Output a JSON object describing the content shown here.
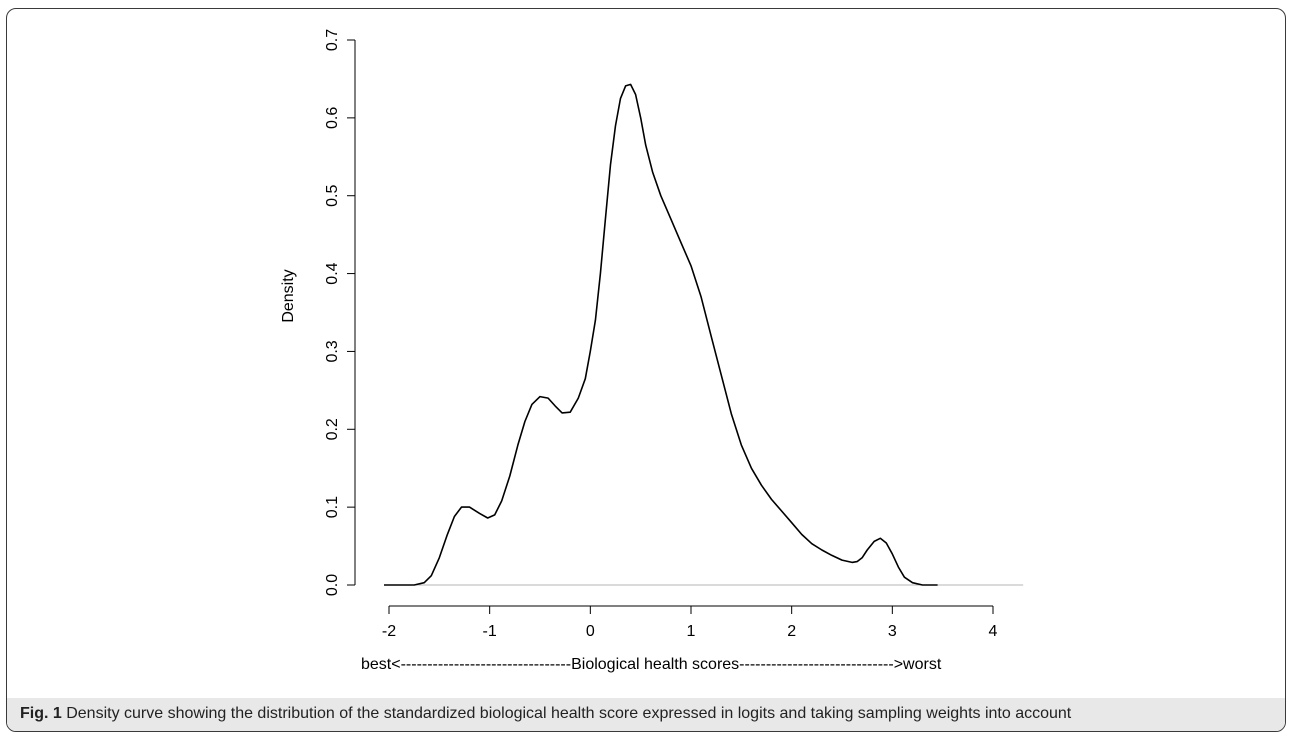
{
  "chart_data": {
    "type": "line",
    "xlabel": "best<--------------------------------Biological health scores----------------------------->worst",
    "ylabel": "Density",
    "xlim": [
      -2,
      4
    ],
    "ylim": [
      0,
      0.7
    ],
    "x_ticks": [
      -2,
      -1,
      0,
      1,
      2,
      3,
      4
    ],
    "x_tick_labels": [
      "-2",
      "-1",
      "0",
      "1",
      "2",
      "3",
      "4"
    ],
    "y_ticks": [
      0,
      0.1,
      0.2,
      0.3,
      0.4,
      0.5,
      0.6,
      0.7
    ],
    "y_tick_labels": [
      "0.0",
      "0.1",
      "0.2",
      "0.3",
      "0.4",
      "0.5",
      "0.6",
      "0.7"
    ],
    "baseline_x": [
      -2.05,
      4.3
    ],
    "series": [
      {
        "points": [
          [
            -2.05,
            0.0
          ],
          [
            -1.9,
            0.0
          ],
          [
            -1.75,
            0.0
          ],
          [
            -1.65,
            0.003
          ],
          [
            -1.58,
            0.012
          ],
          [
            -1.5,
            0.035
          ],
          [
            -1.42,
            0.065
          ],
          [
            -1.35,
            0.088
          ],
          [
            -1.28,
            0.1
          ],
          [
            -1.2,
            0.1
          ],
          [
            -1.1,
            0.092
          ],
          [
            -1.02,
            0.086
          ],
          [
            -0.95,
            0.09
          ],
          [
            -0.88,
            0.108
          ],
          [
            -0.8,
            0.14
          ],
          [
            -0.72,
            0.18
          ],
          [
            -0.65,
            0.21
          ],
          [
            -0.58,
            0.232
          ],
          [
            -0.5,
            0.242
          ],
          [
            -0.42,
            0.24
          ],
          [
            -0.35,
            0.23
          ],
          [
            -0.28,
            0.221
          ],
          [
            -0.2,
            0.222
          ],
          [
            -0.12,
            0.24
          ],
          [
            -0.05,
            0.265
          ],
          [
            0.0,
            0.3
          ],
          [
            0.05,
            0.34
          ],
          [
            0.1,
            0.4
          ],
          [
            0.15,
            0.47
          ],
          [
            0.2,
            0.54
          ],
          [
            0.25,
            0.59
          ],
          [
            0.3,
            0.625
          ],
          [
            0.35,
            0.641
          ],
          [
            0.4,
            0.643
          ],
          [
            0.45,
            0.63
          ],
          [
            0.5,
            0.6
          ],
          [
            0.55,
            0.565
          ],
          [
            0.62,
            0.53
          ],
          [
            0.7,
            0.5
          ],
          [
            0.8,
            0.47
          ],
          [
            0.9,
            0.44
          ],
          [
            1.0,
            0.41
          ],
          [
            1.1,
            0.37
          ],
          [
            1.2,
            0.32
          ],
          [
            1.3,
            0.27
          ],
          [
            1.4,
            0.22
          ],
          [
            1.5,
            0.18
          ],
          [
            1.6,
            0.15
          ],
          [
            1.7,
            0.128
          ],
          [
            1.8,
            0.11
          ],
          [
            1.9,
            0.095
          ],
          [
            2.0,
            0.08
          ],
          [
            2.1,
            0.065
          ],
          [
            2.2,
            0.053
          ],
          [
            2.3,
            0.045
          ],
          [
            2.4,
            0.038
          ],
          [
            2.5,
            0.032
          ],
          [
            2.6,
            0.029
          ],
          [
            2.65,
            0.03
          ],
          [
            2.7,
            0.035
          ],
          [
            2.75,
            0.045
          ],
          [
            2.82,
            0.056
          ],
          [
            2.88,
            0.06
          ],
          [
            2.94,
            0.054
          ],
          [
            3.0,
            0.04
          ],
          [
            3.06,
            0.023
          ],
          [
            3.12,
            0.01
          ],
          [
            3.2,
            0.003
          ],
          [
            3.3,
            0.0
          ],
          [
            3.45,
            0.0
          ]
        ]
      }
    ]
  },
  "caption": {
    "label": "Fig. 1",
    "text": " Density curve showing the distribution of the standardized biological health score expressed in logits and taking sampling weights into account"
  }
}
